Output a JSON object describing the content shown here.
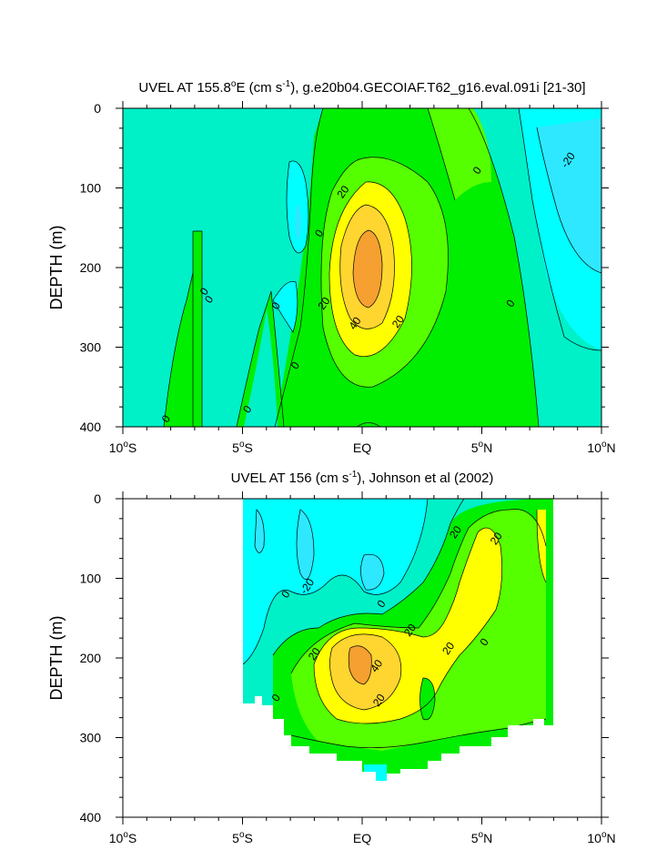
{
  "chart_data": [
    {
      "type": "contour",
      "title_prefix": "UVEL AT 155.8",
      "title_sup": "o",
      "title_mid": "E (cm s",
      "title_sup2": "-1",
      "title_end": "), g.e20b04.GECOIAF.T62_g16.eval.091i [21-30]",
      "ylabel": "DEPTH (m)",
      "xlim": [
        -10,
        10
      ],
      "ylim": [
        400,
        0
      ],
      "x_ticks": [
        {
          "value": -10,
          "num": "10",
          "sup": "o",
          "suf": "S"
        },
        {
          "value": -5,
          "num": "5",
          "sup": "o",
          "suf": "S"
        },
        {
          "value": 0,
          "num": "EQ",
          "sup": "",
          "suf": ""
        },
        {
          "value": 5,
          "num": "5",
          "sup": "o",
          "suf": "N"
        },
        {
          "value": 10,
          "num": "10",
          "sup": "o",
          "suf": "N"
        }
      ],
      "y_ticks": [
        {
          "value": 0,
          "label": "0"
        },
        {
          "value": 100,
          "label": "100"
        },
        {
          "value": 200,
          "label": "200"
        },
        {
          "value": 300,
          "label": "300"
        },
        {
          "value": 400,
          "label": "400"
        }
      ],
      "contour_labels": [
        {
          "text": "20",
          "x": -0.8,
          "y": 105
        },
        {
          "text": "-20",
          "x": 8.6,
          "y": 65
        },
        {
          "text": "0",
          "x": 4.8,
          "y": 78
        },
        {
          "text": "0",
          "x": -1.8,
          "y": 157
        },
        {
          "text": "0",
          "x": -6.6,
          "y": 230
        },
        {
          "text": "0",
          "x": -6.4,
          "y": 240
        },
        {
          "text": "0",
          "x": -3.6,
          "y": 248
        },
        {
          "text": "0",
          "x": 6.2,
          "y": 245
        },
        {
          "text": "20",
          "x": -1.6,
          "y": 245
        },
        {
          "text": "40",
          "x": -0.3,
          "y": 270
        },
        {
          "text": "20",
          "x": 1.5,
          "y": 268
        },
        {
          "text": "0",
          "x": -2.8,
          "y": 323
        },
        {
          "text": "0",
          "x": -4.8,
          "y": 378
        },
        {
          "text": "0",
          "x": -8.2,
          "y": 390
        }
      ]
    },
    {
      "type": "contour",
      "title_prefix": "UVEL AT 156 (cm s",
      "title_sup": "-1",
      "title_end": "), Johnson et al (2002)",
      "ylabel": "DEPTH (m)",
      "xlim": [
        -10,
        10
      ],
      "ylim": [
        400,
        0
      ],
      "x_ticks": [
        {
          "value": -10,
          "num": "10",
          "sup": "o",
          "suf": "S"
        },
        {
          "value": -5,
          "num": "5",
          "sup": "o",
          "suf": "S"
        },
        {
          "value": 0,
          "num": "EQ",
          "sup": "",
          "suf": ""
        },
        {
          "value": 5,
          "num": "5",
          "sup": "o",
          "suf": "N"
        },
        {
          "value": 10,
          "num": "10",
          "sup": "o",
          "suf": "N"
        }
      ],
      "y_ticks": [
        {
          "value": 0,
          "label": "0"
        },
        {
          "value": 100,
          "label": "100"
        },
        {
          "value": 200,
          "label": "200"
        },
        {
          "value": 300,
          "label": "300"
        },
        {
          "value": 400,
          "label": "400"
        }
      ],
      "contour_labels": [
        {
          "text": "20",
          "x": 3.9,
          "y": 42
        },
        {
          "text": "20",
          "x": 5.6,
          "y": 50
        },
        {
          "text": "-20",
          "x": -2.3,
          "y": 110
        },
        {
          "text": "0",
          "x": -3.2,
          "y": 120
        },
        {
          "text": "0",
          "x": 0.8,
          "y": 132
        },
        {
          "text": "20",
          "x": 2.0,
          "y": 165
        },
        {
          "text": "20",
          "x": -2.0,
          "y": 195
        },
        {
          "text": "20",
          "x": 3.6,
          "y": 188
        },
        {
          "text": "0",
          "x": 5.1,
          "y": 180
        },
        {
          "text": "40",
          "x": 0.6,
          "y": 210
        },
        {
          "text": "20",
          "x": 0.7,
          "y": 253
        },
        {
          "text": "0",
          "x": -3.6,
          "y": 250
        }
      ]
    }
  ],
  "colors": {
    "c_neg30": "#00ffff",
    "c_neg20": "#2ee8ff",
    "c_neg10": "#00ffff",
    "c_0": "#00f0c8",
    "c_10": "#00ee00",
    "c_20": "#55ff00",
    "c_30": "#ffff00",
    "c_40": "#ffd530",
    "c_50": "#f5a030"
  }
}
